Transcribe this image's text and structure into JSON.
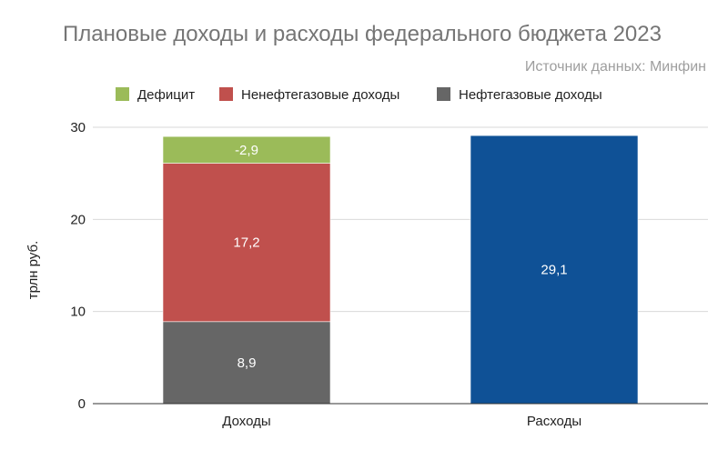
{
  "chart_data": {
    "type": "bar",
    "stacked": true,
    "title": "Плановые доходы и расходы федерального бюджета 2023",
    "subtitle": "Источник данных: Минфин",
    "ylabel": "трлн руб.",
    "xlabel": "",
    "ylim": [
      0,
      30
    ],
    "yticks": [
      0,
      10,
      20,
      30
    ],
    "grid": true,
    "legend_position": "top",
    "categories": [
      "Доходы",
      "Расходы"
    ],
    "legend": [
      {
        "name": "Дефицит",
        "color": "#9bbb59"
      },
      {
        "name": "Ненефтегазовые доходы",
        "color": "#c0504d"
      },
      {
        "name": "Нефтегазовые доходы",
        "color": "#666666"
      }
    ],
    "series": [
      {
        "name": "Нефтегазовые доходы",
        "color": "#666666",
        "values": [
          8.9,
          null
        ],
        "labels": [
          "8,9",
          ""
        ]
      },
      {
        "name": "Ненефтегазовые доходы",
        "color": "#c0504d",
        "values": [
          17.2,
          null
        ],
        "labels": [
          "17,2",
          ""
        ]
      },
      {
        "name": "Дефицит",
        "color": "#9bbb59",
        "values": [
          2.9,
          null
        ],
        "labels": [
          "-2,9",
          ""
        ]
      },
      {
        "name": "",
        "color": "#0f5196",
        "values": [
          null,
          29.1
        ],
        "labels": [
          "",
          "29,1"
        ]
      }
    ]
  }
}
